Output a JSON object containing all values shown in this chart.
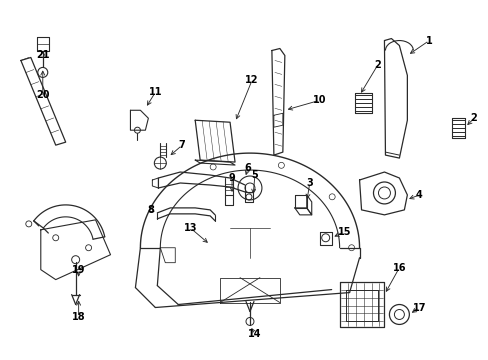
{
  "bg_color": "#ffffff",
  "line_color": "#2a2a2a",
  "label_color": "#000000",
  "lw": 0.9,
  "figsize": [
    4.89,
    3.6
  ],
  "dpi": 100
}
